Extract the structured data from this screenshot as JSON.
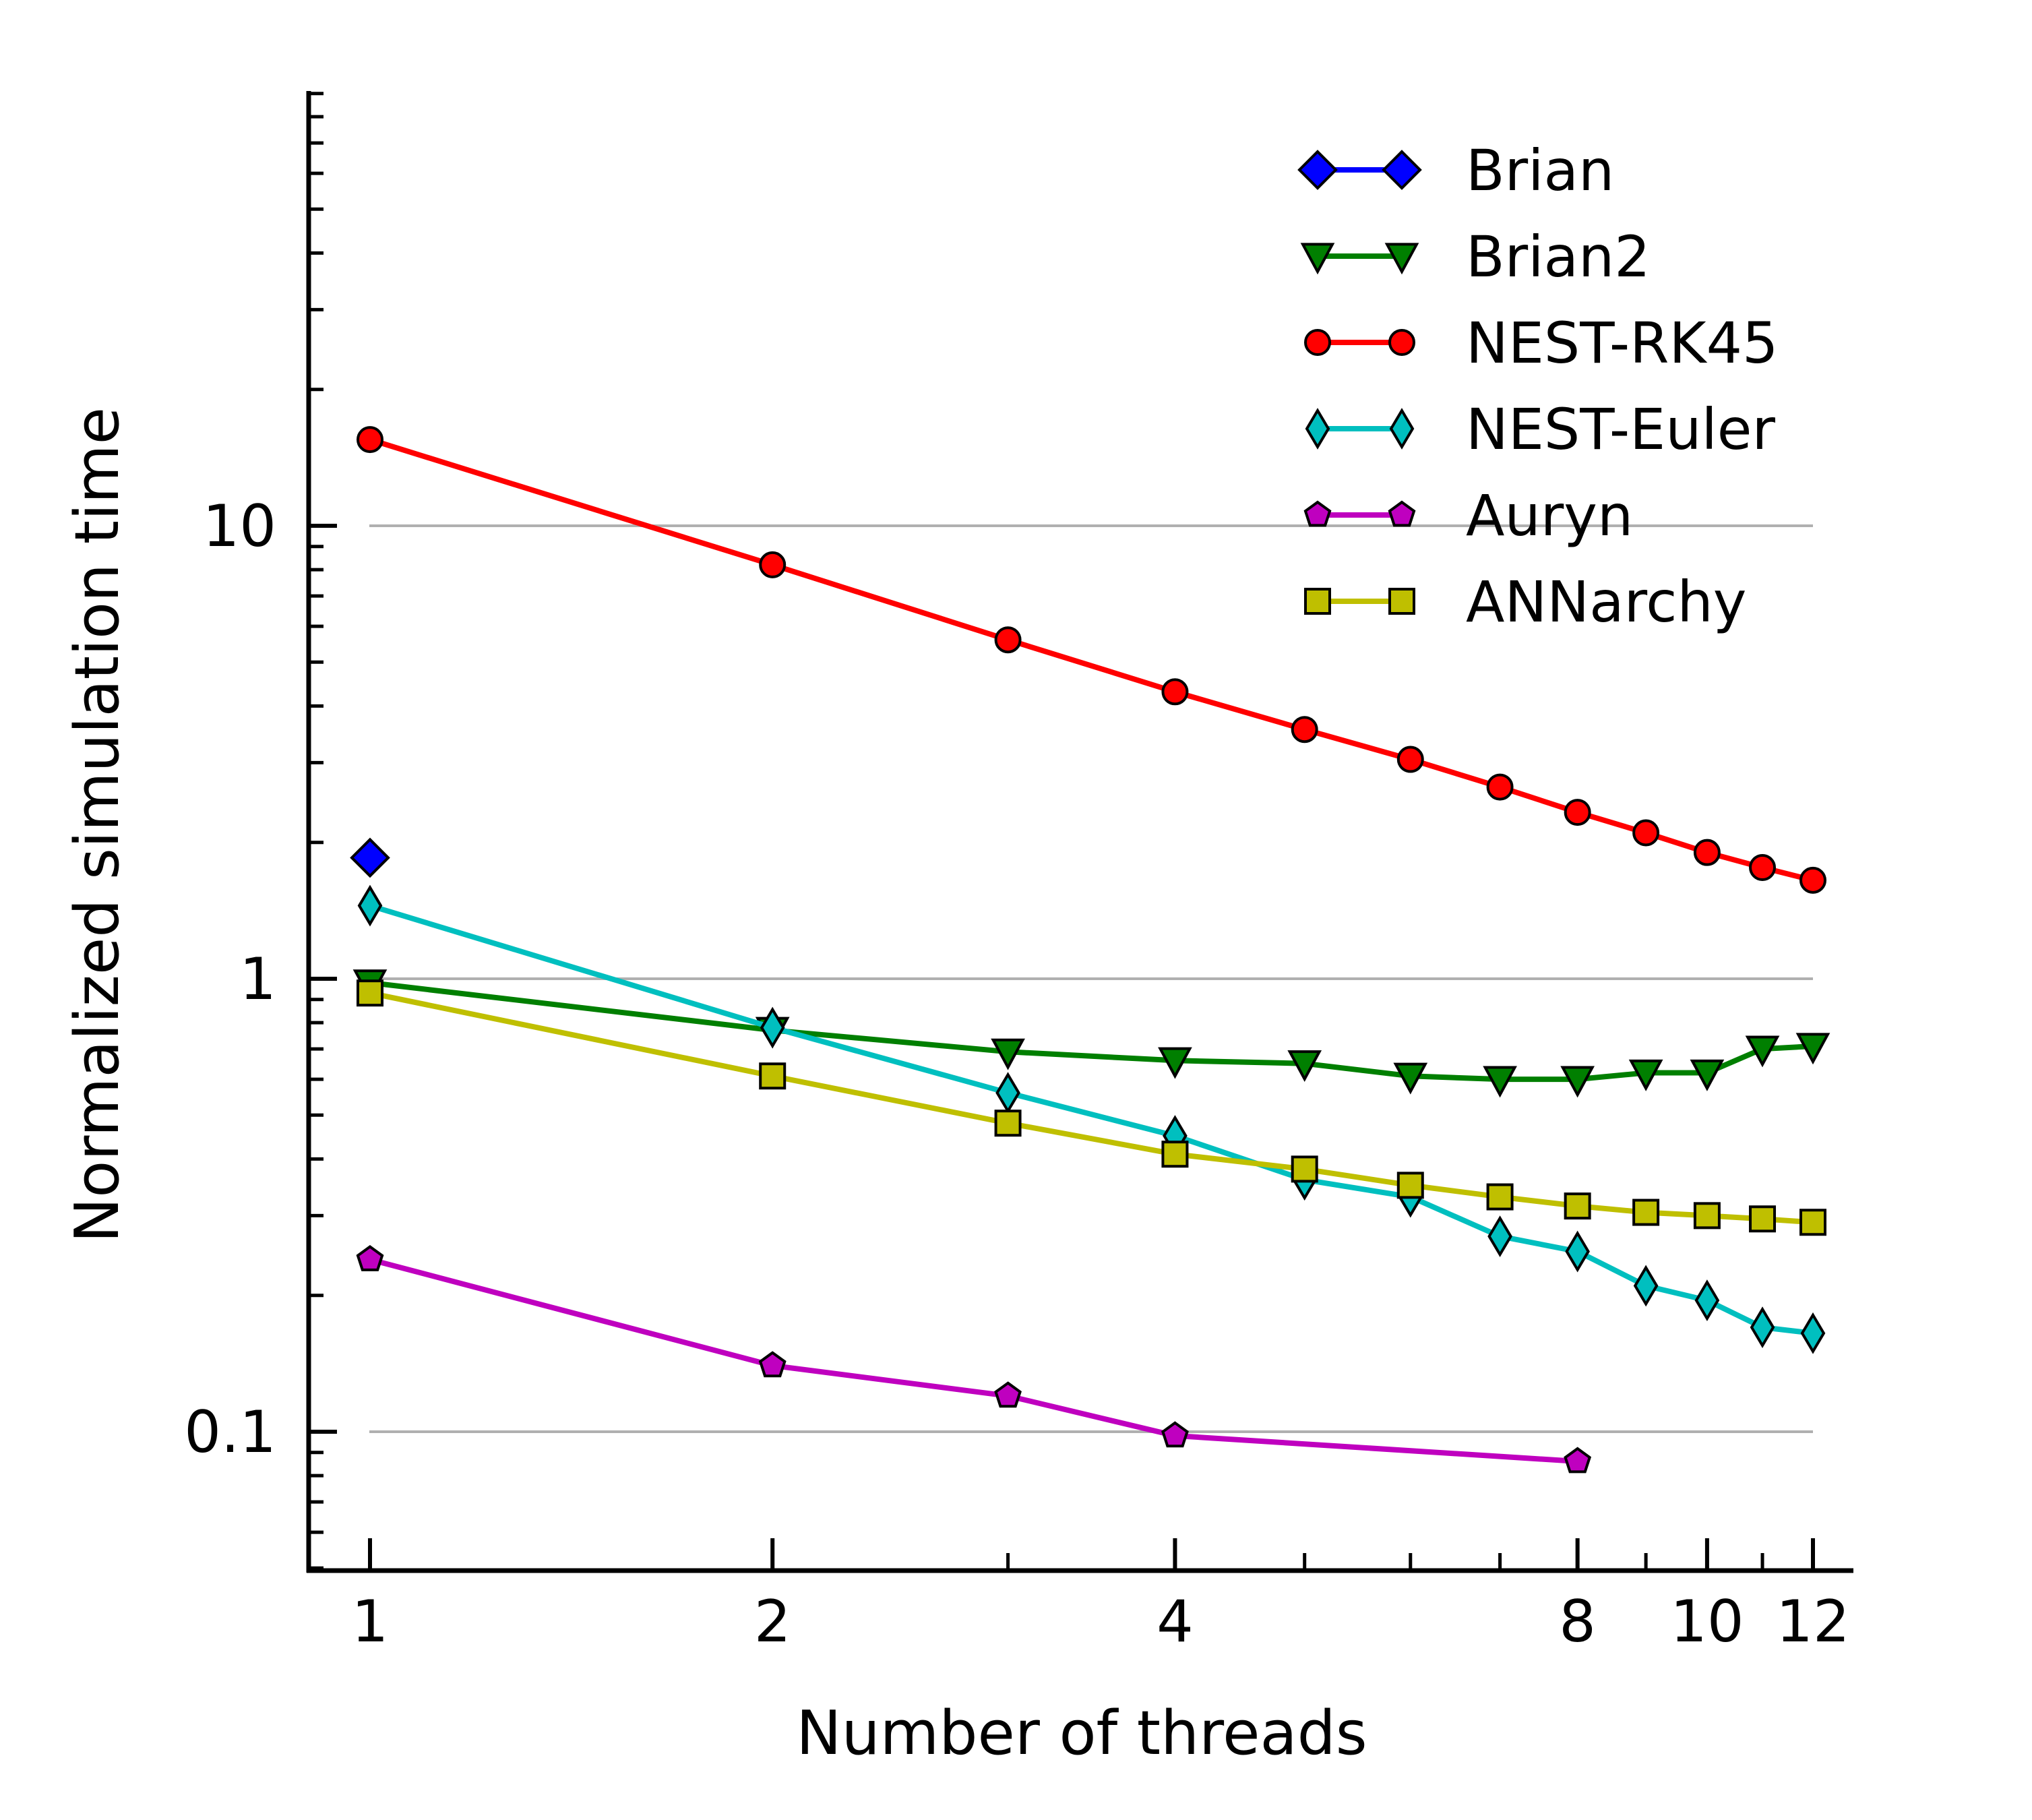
{
  "chart_data": {
    "type": "line",
    "xlabel": "Number of threads",
    "ylabel": "Normalized simulation time",
    "x_scale": "log",
    "y_scale": "log",
    "xlim": [
      0.93,
      13.0
    ],
    "ylim": [
      0.05,
      90
    ],
    "x_ticks": [
      1,
      2,
      4,
      8,
      10,
      12
    ],
    "x_tick_labels": [
      "1",
      "2",
      "4",
      "8",
      "10",
      "12"
    ],
    "x_minor_ticks": [
      3,
      5,
      6,
      7,
      9,
      11
    ],
    "y_ticks": [
      0.1,
      1,
      10
    ],
    "y_tick_labels": [
      "0.1",
      "1",
      "10"
    ],
    "y_gridlines": [
      0.1,
      1,
      10
    ],
    "legend_position": "top-right",
    "series": [
      {
        "name": "Brian",
        "color": "#0000ff",
        "marker": "diamond",
        "x": [
          1
        ],
        "y": [
          1.85
        ]
      },
      {
        "name": "Brian2",
        "color": "#007f00",
        "marker": "triangle-down",
        "x": [
          1,
          2,
          3,
          4,
          5,
          6,
          7,
          8,
          9,
          10,
          11,
          12
        ],
        "y": [
          0.98,
          0.77,
          0.69,
          0.66,
          0.65,
          0.61,
          0.6,
          0.6,
          0.62,
          0.62,
          0.7,
          0.71
        ]
      },
      {
        "name": "NEST-RK45",
        "color": "#ff0000",
        "marker": "circle",
        "x": [
          1,
          2,
          3,
          4,
          5,
          6,
          7,
          8,
          9,
          10,
          11,
          12
        ],
        "y": [
          15.5,
          8.2,
          5.6,
          4.3,
          3.55,
          3.05,
          2.65,
          2.33,
          2.1,
          1.9,
          1.76,
          1.65
        ]
      },
      {
        "name": "NEST-Euler",
        "color": "#00bfbf",
        "marker": "thin-diamond",
        "x": [
          1,
          2,
          3,
          4,
          5,
          6,
          7,
          8,
          9,
          10,
          11,
          12
        ],
        "y": [
          1.45,
          0.78,
          0.56,
          0.45,
          0.36,
          0.33,
          0.27,
          0.25,
          0.21,
          0.195,
          0.17,
          0.165
        ]
      },
      {
        "name": "Auryn",
        "color": "#bf00bf",
        "marker": "pentagon",
        "x": [
          1,
          2,
          3,
          4,
          8
        ],
        "y": [
          0.24,
          0.14,
          0.12,
          0.098,
          0.086
        ]
      },
      {
        "name": "ANNarchy",
        "color": "#bfbf00",
        "marker": "square",
        "x": [
          1,
          2,
          3,
          4,
          5,
          6,
          7,
          8,
          9,
          10,
          11,
          12
        ],
        "y": [
          0.93,
          0.61,
          0.48,
          0.41,
          0.38,
          0.35,
          0.33,
          0.315,
          0.305,
          0.3,
          0.295,
          0.29
        ]
      }
    ]
  }
}
